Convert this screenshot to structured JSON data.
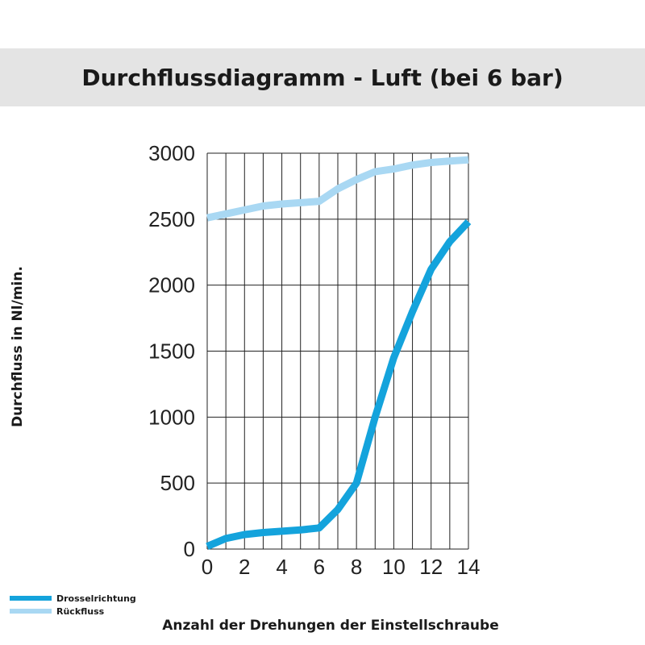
{
  "chart_data": {
    "type": "line",
    "title": "Durchflussdiagramm - Luft (bei 6 bar)",
    "xlabel": "Anzahl der Drehungen der Einstellschraube",
    "ylabel": "Durchfluss in Nl/min.",
    "xlim": [
      0,
      14
    ],
    "ylim": [
      0,
      3000
    ],
    "xticks": [
      0,
      2,
      4,
      6,
      8,
      10,
      12,
      14
    ],
    "yticks": [
      0,
      500,
      1000,
      1500,
      2000,
      2500,
      3000
    ],
    "grid": true,
    "legend_position": "bottom-left",
    "series": [
      {
        "name": "Drosselrichtung",
        "color": "#14a3dc",
        "points": [
          [
            0,
            20
          ],
          [
            1,
            80
          ],
          [
            2,
            110
          ],
          [
            3,
            125
          ],
          [
            4,
            135
          ],
          [
            5,
            145
          ],
          [
            6,
            160
          ],
          [
            7,
            300
          ],
          [
            8,
            500
          ],
          [
            9,
            1000
          ],
          [
            10,
            1450
          ],
          [
            11,
            1800
          ],
          [
            12,
            2120
          ],
          [
            13,
            2330
          ],
          [
            14,
            2480
          ]
        ]
      },
      {
        "name": "Rückfluss",
        "color": "#a9d8f3",
        "points": [
          [
            0,
            2510
          ],
          [
            1,
            2540
          ],
          [
            2,
            2570
          ],
          [
            3,
            2600
          ],
          [
            4,
            2615
          ],
          [
            5,
            2625
          ],
          [
            6,
            2635
          ],
          [
            7,
            2730
          ],
          [
            8,
            2800
          ],
          [
            9,
            2860
          ],
          [
            10,
            2880
          ],
          [
            11,
            2910
          ],
          [
            12,
            2930
          ],
          [
            13,
            2940
          ],
          [
            14,
            2950
          ]
        ]
      }
    ]
  }
}
